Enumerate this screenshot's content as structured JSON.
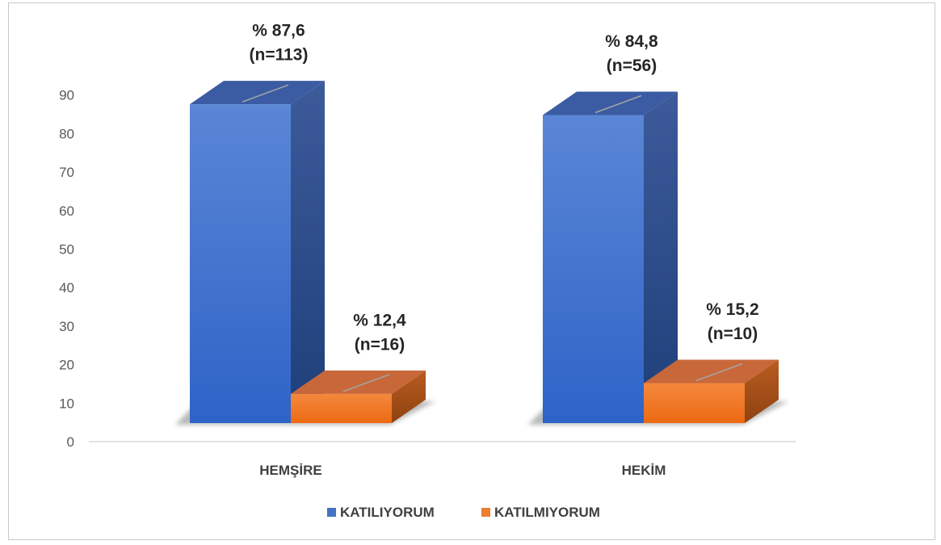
{
  "chart_data": {
    "type": "bar",
    "style": "3d-clustered-column",
    "categories": [
      "HEMŞİRE",
      "HEKİM"
    ],
    "series": [
      {
        "name": "KATILIYORUM",
        "color": "#4472c4",
        "values": [
          87.6,
          84.8
        ],
        "labels": [
          [
            "% 87,6",
            "(n=113)"
          ],
          [
            "% 84,8",
            "(n=56)"
          ]
        ]
      },
      {
        "name": "KATILMIYORUM",
        "color": "#ed7d31",
        "values": [
          12.4,
          15.2
        ],
        "labels": [
          [
            "% 12,4",
            "(n=16)"
          ],
          [
            "% 15,2",
            "(n=10)"
          ]
        ]
      }
    ],
    "yticks": [
      0,
      10,
      20,
      30,
      40,
      50,
      60,
      70,
      80,
      90
    ],
    "ylim": [
      0,
      90
    ],
    "grid": false,
    "legend": "bottom"
  }
}
